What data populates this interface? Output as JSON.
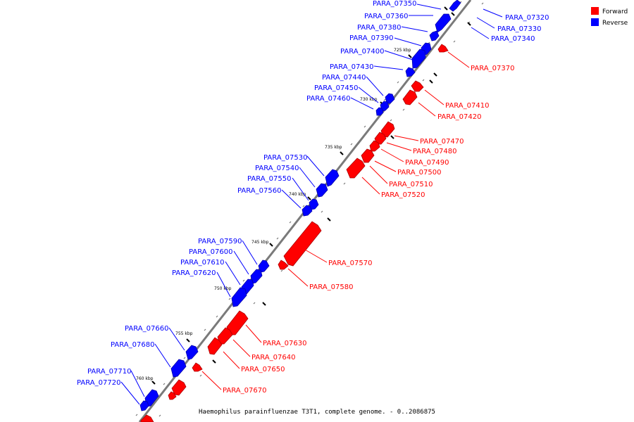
{
  "caption": "Haemophilus parainfluenzae T3T1, complete genome. - 0..2086875",
  "legend": [
    {
      "label": "Forward",
      "color": "#ff0000"
    },
    {
      "label": "Reverse",
      "color": "#0000ff"
    }
  ],
  "colors": {
    "forward": "#ff0000",
    "reverse": "#0000ff",
    "backbone": "#808080",
    "tick": "#000000"
  },
  "scale_marks": [
    "725 kbp",
    "730 kbp",
    "735 kbp",
    "740 kbp",
    "745 kbp",
    "750 kbp",
    "755 kbp",
    "760 kbp"
  ],
  "genes_forward": [
    "PARA_07370",
    "PARA_07410",
    "PARA_07420",
    "PARA_07470",
    "PARA_07480",
    "PARA_07490",
    "PARA_07500",
    "PARA_07510",
    "PARA_07520",
    "PARA_07570",
    "PARA_07580",
    "PARA_07630",
    "PARA_07640",
    "PARA_07650",
    "PARA_07670"
  ],
  "genes_reverse": [
    "PARA_07320",
    "PARA_07330",
    "PARA_07340",
    "PARA_07350",
    "PARA_07360",
    "PARA_07380",
    "PARA_07390",
    "PARA_07400",
    "PARA_07430",
    "PARA_07440",
    "PARA_07450",
    "PARA_07460",
    "PARA_07530",
    "PARA_07540",
    "PARA_07550",
    "PARA_07560",
    "PARA_07590",
    "PARA_07600",
    "PARA_07610",
    "PARA_07620",
    "PARA_07660",
    "PARA_07680",
    "PARA_07710",
    "PARA_07720"
  ]
}
